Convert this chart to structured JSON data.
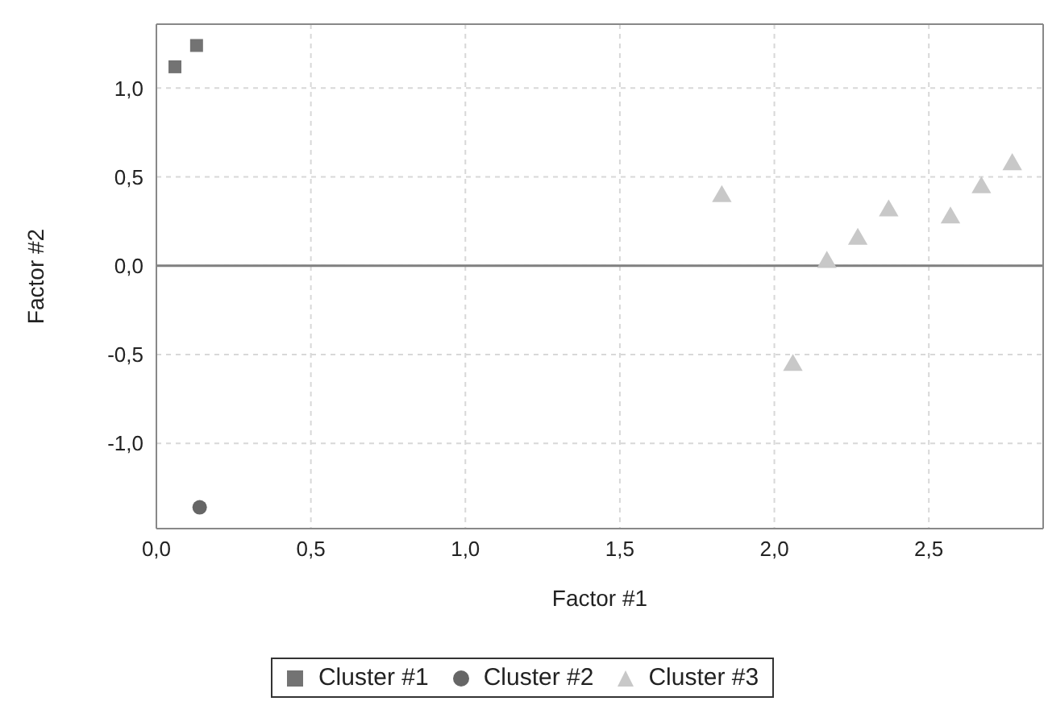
{
  "chart_data": {
    "type": "scatter",
    "xlabel": "Factor #1",
    "ylabel": "Factor #2",
    "xlim": [
      0,
      2.87
    ],
    "ylim": [
      -1.48,
      1.36
    ],
    "xticks": [
      {
        "value": 0,
        "label": "0,0"
      },
      {
        "value": 0.5,
        "label": "0,5"
      },
      {
        "value": 1,
        "label": "1,0"
      },
      {
        "value": 1.5,
        "label": "1,5"
      },
      {
        "value": 2,
        "label": "2,0"
      },
      {
        "value": 2.5,
        "label": "2,5"
      }
    ],
    "yticks": [
      {
        "value": -1,
        "label": "-1,0"
      },
      {
        "value": -0.5,
        "label": "-0,5"
      },
      {
        "value": 0,
        "label": "0,0"
      },
      {
        "value": 0.5,
        "label": "0,5"
      },
      {
        "value": 1,
        "label": "1,0"
      }
    ],
    "grid": true,
    "legend": "bottom",
    "ref_lines": [
      {
        "axis": "y",
        "value": 0,
        "color": "#808080"
      }
    ],
    "series": [
      {
        "name": "Cluster #1",
        "color": "#737373",
        "marker": "square",
        "x": [
          0.06,
          0.13
        ],
        "values": [
          1.12,
          1.24
        ]
      },
      {
        "name": "Cluster #2",
        "color": "#666666",
        "marker": "circle",
        "x": [
          0.14
        ],
        "values": [
          -1.36
        ]
      },
      {
        "name": "Cluster #3",
        "color": "#c8c8c8",
        "marker": "triangle",
        "x": [
          1.83,
          2.06,
          2.17,
          2.27,
          2.37,
          2.57,
          2.67,
          2.77
        ],
        "values": [
          0.39,
          -0.56,
          0.02,
          0.15,
          0.31,
          0.27,
          0.44,
          0.57
        ]
      }
    ]
  }
}
